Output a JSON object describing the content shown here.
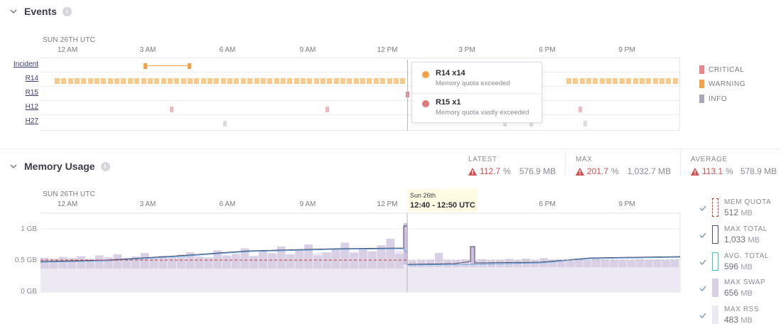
{
  "events": {
    "title": "Events",
    "date_label": "SUN 26TH UTC",
    "time_ticks": [
      "12 AM",
      "3 AM",
      "6 AM",
      "9 AM",
      "12 PM",
      "3 PM",
      "6 PM",
      "9 PM"
    ],
    "rows": [
      "Incident",
      "R14",
      "R15",
      "H12",
      "H27"
    ],
    "legend": [
      {
        "label": "CRITICAL",
        "color": "#e8878b"
      },
      {
        "label": "WARNING",
        "color": "#f4a24a"
      },
      {
        "label": "INFO",
        "color": "#a7aab6"
      }
    ],
    "tooltip": {
      "items": [
        {
          "title": "R14 x14",
          "subtitle": "Memory quota exceeded",
          "color": "#f4a24a"
        },
        {
          "title": "R15 x1",
          "subtitle": "Memory quota vastly exceeded",
          "color": "#e0787c"
        }
      ]
    }
  },
  "memory": {
    "title": "Memory Usage",
    "date_label": "SUN 26TH UTC",
    "time_ticks": [
      "12 AM",
      "3 AM",
      "6 AM",
      "9 AM",
      "12 PM",
      "6 PM",
      "9 PM"
    ],
    "y_ticks": [
      "1 GB",
      "0.5 GB",
      "0 GB"
    ],
    "stats": [
      {
        "label": "LATEST",
        "pct": "112.7",
        "pct_unit": "%",
        "value": "576.9 MB"
      },
      {
        "label": "MAX",
        "pct": "201.7",
        "pct_unit": "%",
        "value": "1,032.7 MB"
      },
      {
        "label": "AVERAGE",
        "pct": "113.1",
        "pct_unit": "%",
        "value": "578.9 MB"
      }
    ],
    "hover": {
      "date": "Sun 26th",
      "range": "12:40 - 12:50 UTC"
    },
    "legend": [
      {
        "label": "MEM QUOTA",
        "value": "512",
        "unit": "MB",
        "style": "quota"
      },
      {
        "label": "MAX TOTAL",
        "value": "1,033",
        "unit": "MB",
        "style": "max-total"
      },
      {
        "label": "AVG. TOTAL",
        "value": "596",
        "unit": "MB",
        "style": "avg-total"
      },
      {
        "label": "MAX SWAP",
        "value": "656",
        "unit": "MB",
        "style": "swap"
      },
      {
        "label": "MAX RSS",
        "value": "483",
        "unit": "MB",
        "style": "rss"
      }
    ]
  },
  "colors": {
    "warning": "#f4a24a",
    "critical": "#e8878b",
    "info": "#a7aab6",
    "swap": "#d9d0e6",
    "rss": "#ece9f3",
    "avg_line": "#5aa6e6",
    "quota_line": "#c0392b"
  }
}
